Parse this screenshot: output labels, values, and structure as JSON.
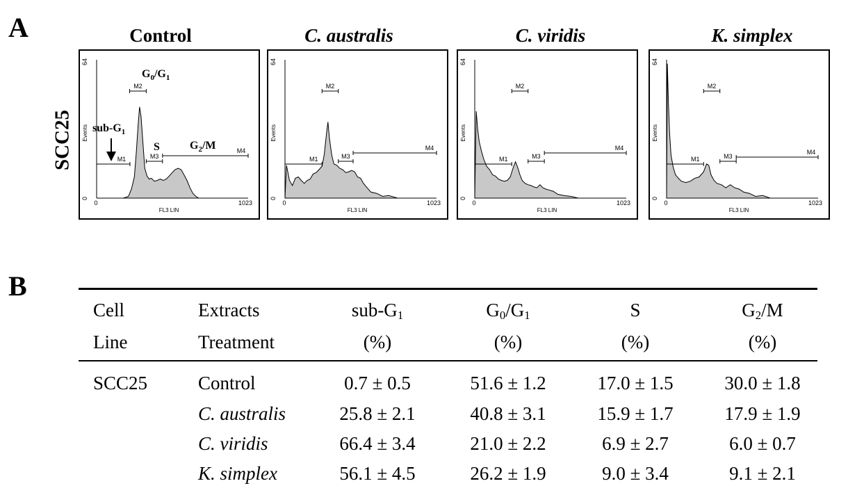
{
  "panel_labels": {
    "a": "A",
    "b": "B"
  },
  "row_label": "SCC25",
  "chart_data": [
    {
      "type": "area",
      "title": "Control",
      "title_italic": false,
      "xlabel": "FL3 LIN",
      "ylabel": "Events",
      "xlim": [
        0,
        1023
      ],
      "ylim": [
        0,
        64
      ],
      "x_ticks": [
        "0",
        "1023"
      ],
      "y_ticks": [
        "0",
        "64"
      ],
      "markers": [
        {
          "name": "M1",
          "start": 0,
          "end": 225
        },
        {
          "name": "M2",
          "start": 223,
          "end": 335
        },
        {
          "name": "M3",
          "start": 335,
          "end": 445
        },
        {
          "name": "M4",
          "start": 445,
          "end": 1023
        }
      ],
      "annotations": [
        "G0/G1",
        "sub-G1",
        "S",
        "G2/M"
      ],
      "histogram": {
        "x": [
          0,
          60,
          100,
          180,
          215,
          235,
          255,
          268,
          280,
          290,
          300,
          312,
          325,
          340,
          355,
          370,
          390,
          410,
          430,
          450,
          470,
          490,
          510,
          530,
          550,
          570,
          590,
          610,
          630,
          650,
          670,
          690,
          710,
          730,
          800,
          900,
          1023
        ],
        "y": [
          0,
          0,
          0,
          0,
          1,
          4,
          10,
          21,
          34,
          42,
          38,
          26,
          14,
          10,
          9,
          9,
          8,
          8,
          9,
          8,
          9,
          10,
          12,
          13,
          14,
          13,
          11,
          8,
          5,
          2,
          1,
          0,
          0,
          0,
          0,
          0,
          0
        ]
      }
    },
    {
      "type": "area",
      "title": "C. australis",
      "title_italic": true,
      "xlabel": "FL3 LIN",
      "ylabel": "Events",
      "xlim": [
        0,
        1023
      ],
      "ylim": [
        0,
        64
      ],
      "x_ticks": [
        "0",
        "1023"
      ],
      "y_ticks": [
        "0",
        "64"
      ],
      "markers": [
        {
          "name": "M1",
          "start": 0,
          "end": 250
        },
        {
          "name": "M2",
          "start": 250,
          "end": 360
        },
        {
          "name": "M3",
          "start": 360,
          "end": 460
        },
        {
          "name": "M4",
          "start": 460,
          "end": 1023
        }
      ],
      "annotations": [],
      "histogram": {
        "x": [
          0,
          10,
          20,
          30,
          50,
          70,
          90,
          110,
          130,
          150,
          170,
          190,
          210,
          230,
          250,
          265,
          280,
          290,
          300,
          315,
          330,
          350,
          370,
          390,
          410,
          430,
          450,
          470,
          490,
          510,
          530,
          550,
          580,
          620,
          660,
          700,
          760,
          850,
          1023
        ],
        "y": [
          0,
          15,
          12,
          8,
          6,
          9,
          10,
          8,
          7,
          8,
          9,
          11,
          12,
          13,
          15,
          20,
          30,
          35,
          28,
          20,
          16,
          15,
          14,
          13,
          12,
          12,
          13,
          12,
          10,
          9,
          7,
          5,
          3,
          2,
          1,
          1,
          0,
          0,
          0
        ]
      }
    },
    {
      "type": "area",
      "title": "C. viridis",
      "title_italic": true,
      "xlabel": "FL3 LIN",
      "ylabel": "Events",
      "xlim": [
        0,
        1023
      ],
      "ylim": [
        0,
        64
      ],
      "x_ticks": [
        "0",
        "1023"
      ],
      "y_ticks": [
        "0",
        "64"
      ],
      "markers": [
        {
          "name": "M1",
          "start": 0,
          "end": 250
        },
        {
          "name": "M2",
          "start": 250,
          "end": 360
        },
        {
          "name": "M3",
          "start": 360,
          "end": 470
        },
        {
          "name": "M4",
          "start": 470,
          "end": 1023
        }
      ],
      "annotations": [],
      "histogram": {
        "x": [
          0,
          10,
          20,
          30,
          45,
          60,
          80,
          100,
          120,
          140,
          160,
          180,
          200,
          220,
          240,
          260,
          275,
          290,
          305,
          320,
          340,
          360,
          380,
          400,
          420,
          440,
          460,
          480,
          500,
          530,
          560,
          600,
          650,
          700,
          800,
          1023
        ],
        "y": [
          0,
          40,
          32,
          26,
          22,
          18,
          15,
          13,
          11,
          10,
          9,
          8,
          8,
          8,
          10,
          14,
          17,
          14,
          11,
          8,
          7,
          6,
          6,
          5,
          5,
          6,
          5,
          4,
          4,
          3,
          2,
          1,
          1,
          0,
          0,
          0
        ]
      }
    },
    {
      "type": "area",
      "title": "K. simplex",
      "title_italic": true,
      "xlabel": "FL3 LIN",
      "ylabel": "Events",
      "xlim": [
        0,
        1023
      ],
      "ylim": [
        0,
        64
      ],
      "x_ticks": [
        "0",
        "1023"
      ],
      "y_ticks": [
        "0",
        "64"
      ],
      "markers": [
        {
          "name": "M1",
          "start": 0,
          "end": 250
        },
        {
          "name": "M2",
          "start": 250,
          "end": 360
        },
        {
          "name": "M3",
          "start": 360,
          "end": 470
        },
        {
          "name": "M4",
          "start": 470,
          "end": 1023
        }
      ],
      "annotations": [],
      "histogram": {
        "x": [
          0,
          5,
          12,
          20,
          30,
          45,
          60,
          80,
          100,
          130,
          160,
          190,
          220,
          250,
          270,
          285,
          300,
          320,
          340,
          370,
          400,
          430,
          460,
          490,
          520,
          560,
          600,
          650,
          700,
          800,
          1023
        ],
        "y": [
          0,
          62,
          45,
          30,
          20,
          14,
          11,
          9,
          8,
          7,
          8,
          9,
          10,
          12,
          16,
          15,
          11,
          8,
          7,
          6,
          5,
          6,
          5,
          4,
          3,
          2,
          1,
          1,
          0,
          0,
          0
        ]
      }
    }
  ],
  "table": {
    "headers": [
      [
        "Cell",
        "Line"
      ],
      [
        "Extracts",
        "Treatment"
      ],
      [
        "sub-G1",
        "(%)"
      ],
      [
        "G0/G1",
        "(%)"
      ],
      [
        "S",
        "(%)"
      ],
      [
        "G2/M",
        "(%)"
      ]
    ],
    "rows": [
      {
        "cell_line": "SCC25",
        "treatment": "Control",
        "treatment_italic": false,
        "values": [
          "0.7 ± 0.5",
          "51.6 ± 1.2",
          "17.0 ± 1.5",
          "30.0 ± 1.8"
        ]
      },
      {
        "cell_line": "",
        "treatment": "C. australis",
        "treatment_italic": true,
        "values": [
          "25.8 ± 2.1",
          "40.8 ± 3.1",
          "15.9 ± 1.7",
          "17.9 ± 1.9"
        ]
      },
      {
        "cell_line": "",
        "treatment": "C. viridis",
        "treatment_italic": true,
        "values": [
          "66.4 ± 3.4",
          "21.0 ± 2.2",
          "6.9 ± 2.7",
          "6.0 ± 0.7"
        ]
      },
      {
        "cell_line": "",
        "treatment": "K. simplex",
        "treatment_italic": true,
        "values": [
          "56.1 ± 4.5",
          "26.2 ± 1.9",
          "9.0 ± 3.4",
          "9.1 ± 2.1"
        ]
      }
    ]
  }
}
